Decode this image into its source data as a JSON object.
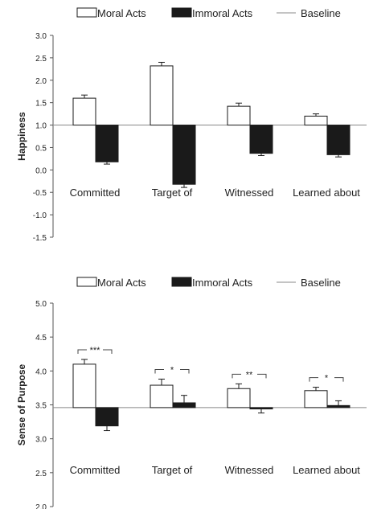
{
  "chart_data": [
    {
      "type": "bar",
      "ylabel": "Happiness",
      "ylim": [
        -1.5,
        3.0
      ],
      "yticks": [
        "3.0",
        "2.5",
        "2.0",
        "1.5",
        "1.0",
        "0.5",
        "0.0",
        "-0.5",
        "-1.0",
        "-1.5"
      ],
      "baseline": 1.0,
      "categories": [
        "Committed",
        "Target of",
        "Witnessed",
        "Learned about"
      ],
      "series": [
        {
          "name": "Moral Acts",
          "color": "#ffffff",
          "values": [
            1.6,
            2.32,
            1.42,
            1.2
          ],
          "errors": [
            0.07,
            0.08,
            0.07,
            0.05
          ]
        },
        {
          "name": "Immoral Acts",
          "color": "#1a1a1a",
          "values": [
            0.18,
            -0.32,
            0.37,
            0.34
          ],
          "errors": [
            0.05,
            0.07,
            0.05,
            0.05
          ]
        },
        {
          "name": "Baseline",
          "color": "#888888"
        }
      ],
      "significance": [
        "",
        "",
        "",
        ""
      ]
    },
    {
      "type": "bar",
      "ylabel": "Sense of Purpose",
      "ylim": [
        2.0,
        5.0
      ],
      "yticks": [
        "5.0",
        "4.5",
        "4.0",
        "3.5",
        "3.0",
        "2.5",
        "2.0"
      ],
      "baseline": 3.46,
      "categories": [
        "Committed",
        "Target of",
        "Witnessed",
        "Learned about"
      ],
      "series": [
        {
          "name": "Moral Acts",
          "color": "#ffffff",
          "values": [
            4.1,
            3.79,
            3.74,
            3.71
          ],
          "errors": [
            0.07,
            0.09,
            0.07,
            0.05
          ]
        },
        {
          "name": "Immoral Acts",
          "color": "#1a1a1a",
          "values": [
            3.19,
            3.53,
            3.44,
            3.49
          ],
          "errors": [
            0.07,
            0.11,
            0.06,
            0.07
          ]
        },
        {
          "name": "Baseline",
          "color": "#888888"
        }
      ],
      "significance": [
        "***",
        "*",
        "**",
        "*"
      ]
    }
  ]
}
